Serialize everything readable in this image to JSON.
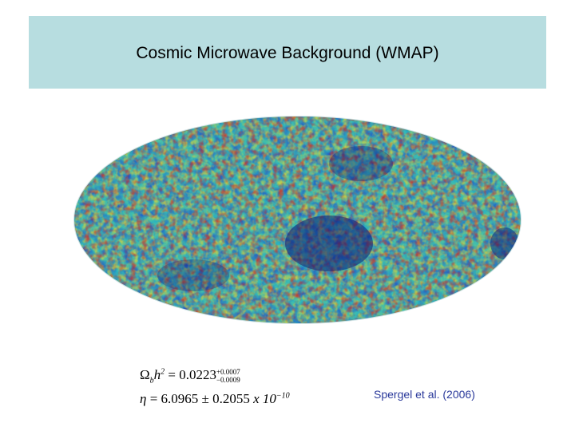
{
  "slide": {
    "title": "Cosmic Microwave Background (WMAP)",
    "citation": "Spergel et al. (2006)"
  },
  "equations": {
    "omega": {
      "lhs_symbol": "Ω",
      "lhs_sub": "b",
      "lhs_var": "h",
      "lhs_exp": "2",
      "value": "= 0.0223",
      "err_plus": "+0.0007",
      "err_minus": "−0.0009"
    },
    "eta": {
      "symbol": "η",
      "value": "= 6.0965 ± 0.2055",
      "times": "x 10",
      "exp": "−10"
    }
  },
  "image": {
    "name": "WMAP all-sky CMB temperature map",
    "colors": [
      "#0b1a78",
      "#1f4fc8",
      "#27b6c4",
      "#55c99a",
      "#e8d430",
      "#d9241b"
    ]
  }
}
